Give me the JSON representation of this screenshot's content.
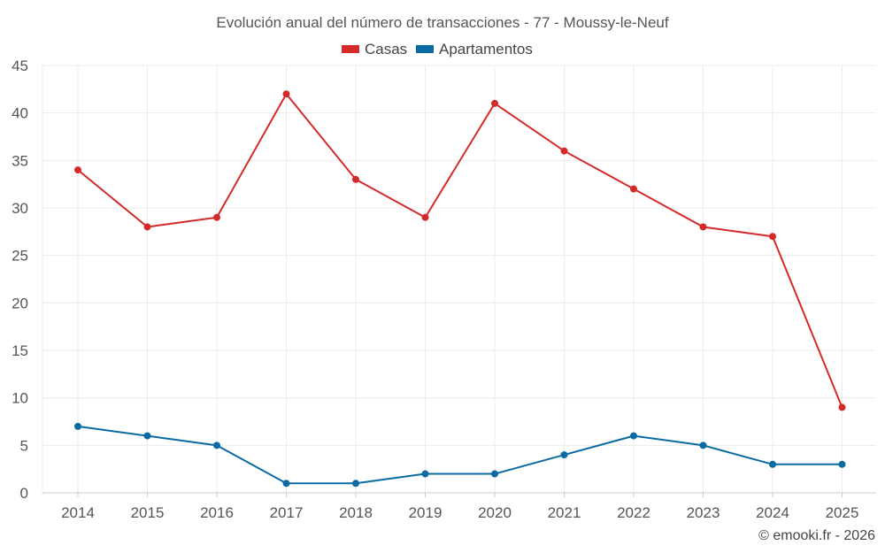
{
  "chart_data": {
    "type": "line",
    "title": "Evolución anual del número de transacciones - 77 - Moussy-le-Neuf",
    "categories": [
      "2014",
      "2015",
      "2016",
      "2017",
      "2018",
      "2019",
      "2020",
      "2021",
      "2022",
      "2023",
      "2024",
      "2025"
    ],
    "series": [
      {
        "name": "Casas",
        "color": "#d42a2a",
        "values": [
          34,
          28,
          29,
          42,
          33,
          29,
          41,
          36,
          32,
          28,
          27,
          9
        ]
      },
      {
        "name": "Apartamentos",
        "color": "#0b6aa2",
        "values": [
          7,
          6,
          5,
          1,
          1,
          2,
          2,
          4,
          6,
          5,
          3,
          3
        ]
      }
    ],
    "ylim": [
      0,
      45
    ],
    "yticks": [
      0,
      5,
      10,
      15,
      20,
      25,
      30,
      35,
      40,
      45
    ],
    "xlabel": "",
    "ylabel": "",
    "grid": true,
    "legend_position": "top-center"
  },
  "credit": "© emooki.fr - 2026"
}
